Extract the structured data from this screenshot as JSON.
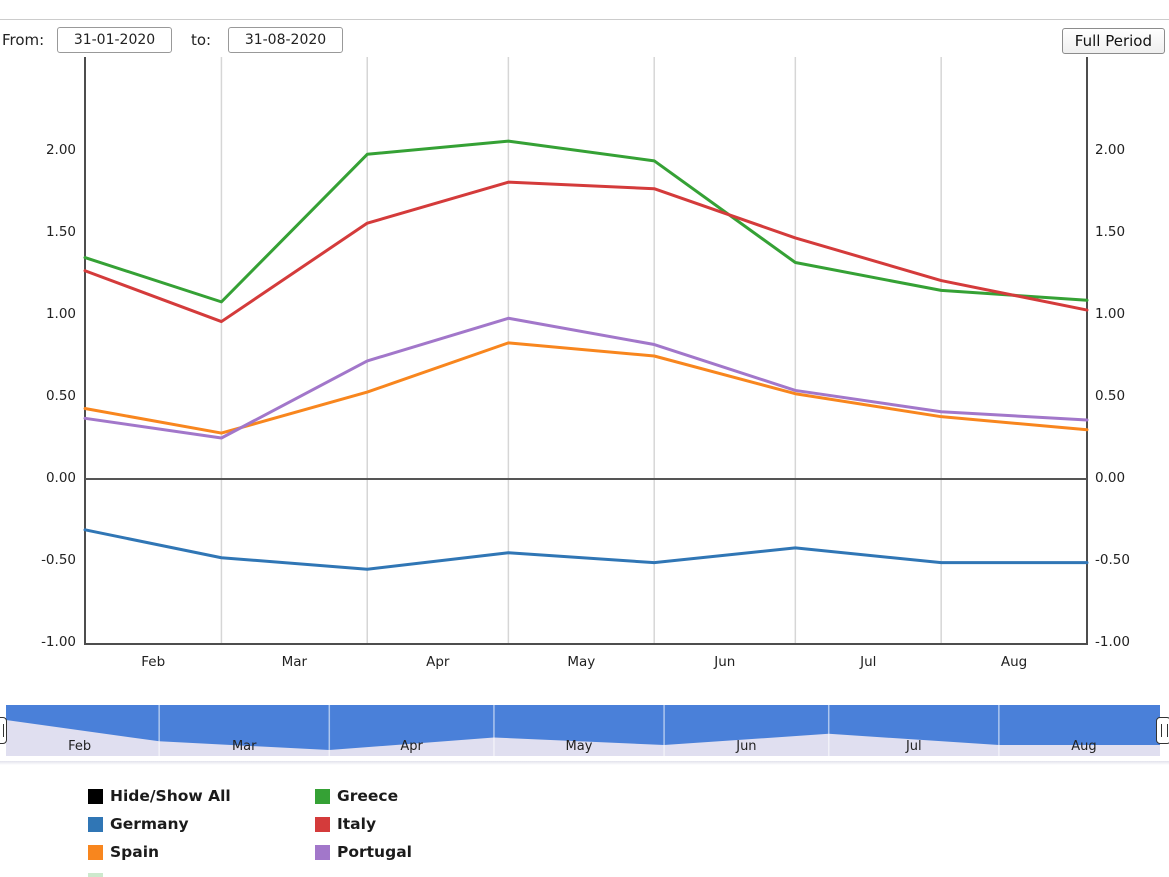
{
  "toolbar": {
    "from_label": "From:",
    "from_value": "31-01-2020",
    "to_label": "to:",
    "to_value": "31-08-2020",
    "full_period_label": "Full Period"
  },
  "chart_data": {
    "type": "line",
    "x": [
      "31-01-2020",
      "29-02-2020",
      "31-03-2020",
      "30-04-2020",
      "31-05-2020",
      "30-06-2020",
      "31-07-2020",
      "31-08-2020"
    ],
    "x_days": [
      0,
      29,
      60,
      90,
      121,
      151,
      182,
      213
    ],
    "month_labels": [
      "Feb",
      "Mar",
      "Apr",
      "May",
      "Jun",
      "Jul",
      "Aug"
    ],
    "ytick_labels": [
      "2.00",
      "1.50",
      "1.00",
      "0.50",
      "0.00",
      "-0.50",
      "-1.00"
    ],
    "ylim": [
      -1.0,
      2.57
    ],
    "grid": "vertical-only",
    "legend_position": "bottom-left",
    "series": [
      {
        "name": "Germany",
        "color": "#3076b5",
        "values": [
          -0.31,
          -0.48,
          -0.55,
          -0.45,
          -0.51,
          -0.42,
          -0.51,
          -0.51
        ]
      },
      {
        "name": "Spain",
        "color": "#f8861e",
        "values": [
          0.43,
          0.28,
          0.53,
          0.83,
          0.75,
          0.52,
          0.38,
          0.3
        ]
      },
      {
        "name": "Greece",
        "color": "#35a135",
        "values": [
          1.35,
          1.08,
          1.98,
          2.06,
          1.94,
          1.32,
          1.15,
          1.09
        ]
      },
      {
        "name": "Italy",
        "color": "#d43b3b",
        "values": [
          1.27,
          0.96,
          1.56,
          1.81,
          1.77,
          1.47,
          1.21,
          1.03
        ]
      },
      {
        "name": "Portugal",
        "color": "#a277ca",
        "values": [
          0.37,
          0.25,
          0.72,
          0.98,
          0.82,
          0.54,
          0.41,
          0.36
        ]
      }
    ],
    "navigator": {
      "shows_series": "Germany",
      "month_labels": [
        "Feb",
        "Mar",
        "Apr",
        "May",
        "Jun",
        "Jul",
        "Aug"
      ],
      "area_color": "#4a80d9",
      "mask_color": "#e0dff0"
    }
  },
  "legend": {
    "items": [
      {
        "label": "Hide/Show All",
        "color": "#000000"
      },
      {
        "label": "Germany",
        "color": "#3076b5"
      },
      {
        "label": "Spain",
        "color": "#f8861e"
      },
      {
        "label": "",
        "color": "#cde9cd"
      },
      {
        "label": "Greece",
        "color": "#35a135"
      },
      {
        "label": "Italy",
        "color": "#d43b3b"
      },
      {
        "label": "Portugal",
        "color": "#a277ca"
      }
    ]
  },
  "colors": {
    "axis_line": "#4d4d4d",
    "zero_line": "#555555",
    "gridline": "#d6d6d6"
  }
}
